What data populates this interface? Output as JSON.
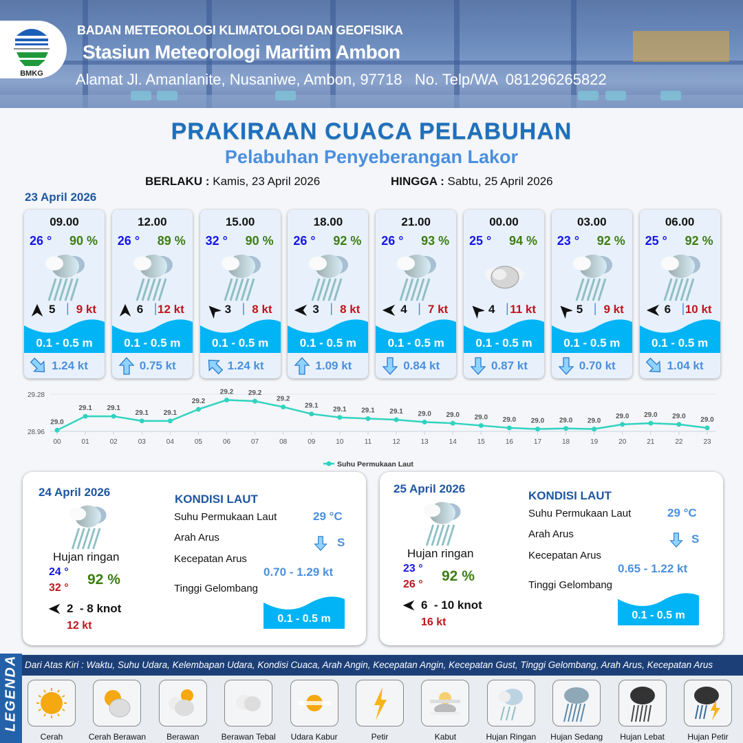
{
  "header": {
    "org": "BADAN METEOROLOGI KLIMATOLOGI DAN GEOFISIKA",
    "station": "Stasiun Meteorologi Maritim Ambon",
    "address": "Alamat Jl. Amanlanite, Nusaniwe, Ambon, 97718   No. Telp/WA  081296265822",
    "logo_text": "BMKG"
  },
  "title": "PRAKIRAAN CUACA PELABUHAN",
  "subtitle": "Pelabuhan Penyeberangan Lakor",
  "validity": {
    "from_label": "BERLAKU :",
    "from_value": "Kamis, 23 April 2026",
    "to_label": "HINGGA :",
    "to_value": "Sabtu, 25 April 2026"
  },
  "day1_label": "23 April 2026",
  "forecasts": [
    {
      "time": "09.00",
      "temp": "26 °",
      "humidity": "90 %",
      "weather": "Hujan Ringan",
      "wind_dir": "N",
      "wind_speed": "5",
      "gust": "9 kt",
      "wave": "0.1 - 0.5 m",
      "current_dir": "SE",
      "current_speed": "1.24 kt"
    },
    {
      "time": "12.00",
      "temp": "26 °",
      "humidity": "89 %",
      "weather": "Hujan Ringan",
      "wind_dir": "N",
      "wind_speed": "6",
      "gust": "12 kt",
      "wave": "0.1 - 0.5 m",
      "current_dir": "N",
      "current_speed": "0.75 kt"
    },
    {
      "time": "15.00",
      "temp": "32 °",
      "humidity": "90 %",
      "weather": "Hujan Ringan",
      "wind_dir": "NW",
      "wind_speed": "3",
      "gust": "8 kt",
      "wave": "0.1 - 0.5 m",
      "current_dir": "NW",
      "current_speed": "1.24 kt"
    },
    {
      "time": "18.00",
      "temp": "26 °",
      "humidity": "92 %",
      "weather": "Hujan Ringan",
      "wind_dir": "W",
      "wind_speed": "3",
      "gust": "8 kt",
      "wave": "0.1 - 0.5 m",
      "current_dir": "N",
      "current_speed": "1.09 kt"
    },
    {
      "time": "21.00",
      "temp": "26 °",
      "humidity": "93 %",
      "weather": "Hujan Ringan",
      "wind_dir": "W",
      "wind_speed": "4",
      "gust": "7 kt",
      "wave": "0.1 - 0.5 m",
      "current_dir": "S",
      "current_speed": "0.84 kt"
    },
    {
      "time": "00.00",
      "temp": "25 °",
      "humidity": "94 %",
      "weather": "Berawan Tebal",
      "wind_dir": "NW",
      "wind_speed": "4",
      "gust": "11 kt",
      "wave": "0.1 - 0.5 m",
      "current_dir": "S",
      "current_speed": "0.87 kt"
    },
    {
      "time": "03.00",
      "temp": "23 °",
      "humidity": "92 %",
      "weather": "Hujan Ringan",
      "wind_dir": "NW",
      "wind_speed": "5",
      "gust": "9 kt",
      "wave": "0.1 - 0.5 m",
      "current_dir": "S",
      "current_speed": "0.70 kt"
    },
    {
      "time": "06.00",
      "temp": "25 °",
      "humidity": "92 %",
      "weather": "Hujan Ringan",
      "wind_dir": "W",
      "wind_speed": "6",
      "gust": "10 kt",
      "wave": "0.1 - 0.5 m",
      "current_dir": "SE",
      "current_speed": "1.04 kt"
    }
  ],
  "chart_data": {
    "type": "line",
    "categories": [
      "00",
      "01",
      "02",
      "03",
      "04",
      "05",
      "06",
      "07",
      "08",
      "09",
      "10",
      "11",
      "12",
      "13",
      "14",
      "15",
      "16",
      "17",
      "18",
      "19",
      "20",
      "21",
      "22",
      "23"
    ],
    "series": [
      {
        "name": "Suhu Permukaan Laut",
        "values": [
          28.97,
          29.09,
          29.09,
          29.05,
          29.05,
          29.15,
          29.23,
          29.22,
          29.17,
          29.11,
          29.08,
          29.07,
          29.06,
          29.04,
          29.03,
          29.01,
          28.99,
          28.98,
          28.985,
          28.98,
          29.02,
          29.03,
          29.02,
          28.99
        ],
        "labels": [
          "29.0",
          "29.1",
          "29.1",
          "29.1",
          "29.1",
          "29.2",
          "29.2",
          "29.2",
          "29.2",
          "29.1",
          "29.1",
          "29.1",
          "29.1",
          "29.0",
          "29.0",
          "29.0",
          "29.0",
          "29.0",
          "29.0",
          "29.0",
          "29.0",
          "29.0",
          "29.0",
          "29.0"
        ],
        "color": "#2fd3c0"
      }
    ],
    "yticks": [
      "28.96",
      "29.28"
    ],
    "ylim": [
      28.96,
      29.28
    ],
    "legend": "bottom",
    "grid": true
  },
  "days": [
    {
      "date": "24 April 2026",
      "weather": "Hujan ringan",
      "temp_min": "24 °",
      "temp_max": "32 °",
      "humidity": "92 %",
      "wind_dir": "W",
      "wind": "2  - 8 knot",
      "gust": "12 kt",
      "sea_heading": "KONDISI LAUT",
      "sst_label": "Suhu Permukaan Laut",
      "sst": "29 °C",
      "current_dir_label": "Arah Arus",
      "current_dir": "S",
      "current_speed_label": "Kecepatan Arus",
      "current_speed": "0.70 - 1.29 kt",
      "wave_label": "Tinggi Gelombang",
      "wave": "0.1 - 0.5 m"
    },
    {
      "date": "25 April 2026",
      "weather": "Hujan ringan",
      "temp_min": "23 °",
      "temp_max": "26 °",
      "humidity": "92 %",
      "wind_dir": "W",
      "wind": "6  - 10 knot",
      "gust": "16 kt",
      "sea_heading": "KONDISI LAUT",
      "sst_label": "Suhu Permukaan Laut",
      "sst": "29 °C",
      "current_dir_label": "Arah Arus",
      "current_dir": "S",
      "current_speed_label": "Kecepatan Arus",
      "current_speed": "0.65 - 1.22 kt",
      "wave_label": "Tinggi Gelombang",
      "wave": "0.1 - 0.5 m"
    }
  ],
  "legend": {
    "title": "LEGENDA",
    "description": "Dari Atas Kiri : Waktu, Suhu Udara, Kelembapan Udara, Kondisi Cuaca, Arah Angin, Kecepatan Angin, Kecepatan Gust, Tinggi Gelombang, Arah Arus, Kecepatan Arus",
    "items": [
      "Cerah",
      "Cerah Berawan",
      "Berawan",
      "Berawan Tebal",
      "Udara Kabur",
      "Petir",
      "Kabut",
      "Hujan Ringan",
      "Hujan Sedang",
      "Hujan Lebat",
      "Hujan Petir"
    ]
  },
  "colors": {
    "wave": "#00b4f5",
    "title": "#1f6fbd",
    "temp": "#1515e8",
    "humidity": "#3d7d12",
    "gust": "#c0141c",
    "current": "#4a8fde"
  }
}
